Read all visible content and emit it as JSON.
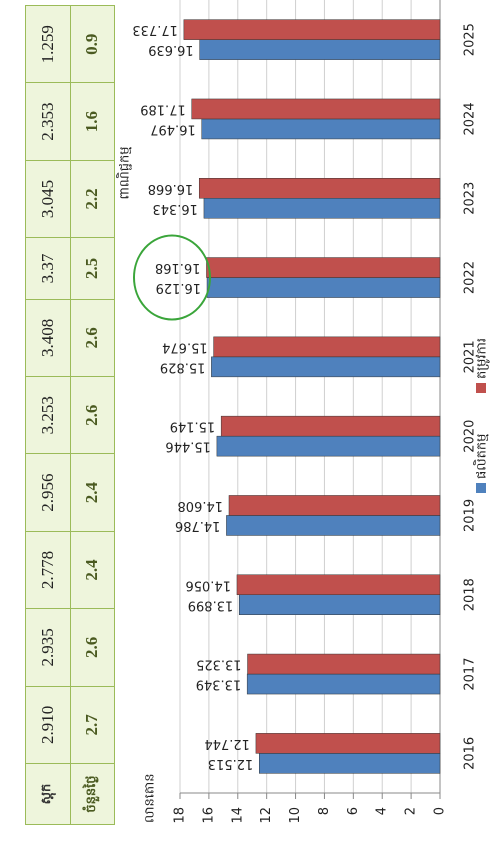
{
  "table": {
    "rows": [
      [
        "ស្តុក",
        "2.910",
        "2.935",
        "2.778",
        "2.956",
        "3.253",
        "3.408",
        "3.37",
        "3.045",
        "2.353",
        "1.259"
      ],
      [
        "ចំនួនថ្ងៃ",
        "2.7",
        "2.6",
        "2.4",
        "2.4",
        "2.6",
        "2.6",
        "2.5",
        "2.2",
        "1.6",
        "0.9"
      ]
    ]
  },
  "chart_data": {
    "type": "bar",
    "title": "ពាណិជ្ជកម្ម",
    "y_label": "លានតោន",
    "categories": [
      "2016",
      "2017",
      "2018",
      "2019",
      "2020",
      "2021",
      "2022",
      "2023",
      "2024",
      "2025"
    ],
    "series": [
      {
        "name": "ផលិតកម្ម",
        "color": "#4f81bd",
        "values": [
          12.513,
          13.349,
          13.899,
          14.786,
          15.446,
          15.829,
          16.129,
          16.343,
          16.497,
          16.639
        ]
      },
      {
        "name": "តម្រូវការ",
        "color": "#c0504d",
        "values": [
          12.744,
          13.325,
          14.056,
          14.608,
          15.149,
          15.674,
          16.168,
          16.668,
          17.189,
          17.733
        ]
      }
    ],
    "ylim": [
      0,
      18
    ],
    "yticks": [
      0,
      2,
      4,
      6,
      8,
      10,
      12,
      14,
      16,
      18
    ],
    "grid": true
  }
}
